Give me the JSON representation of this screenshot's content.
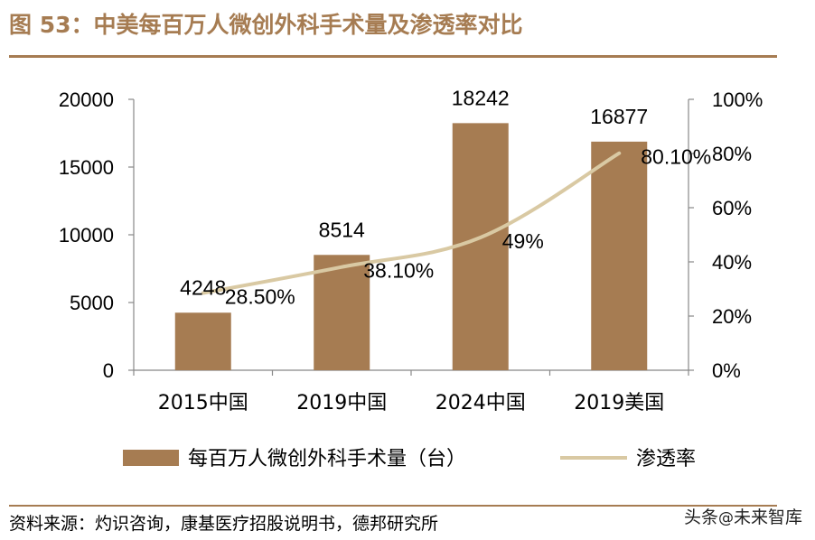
{
  "header": {
    "title": "图 53：中美每百万人微创外科手术量及渗透率对比"
  },
  "footer": {
    "source": "资料来源：灼识咨询，康基医疗招股说明书，德邦研究所"
  },
  "watermark": {
    "prefix": "头条",
    "at": "@",
    "name": "未来智库"
  },
  "colors": {
    "bar": "#a67c52",
    "line": "#d9c9a3",
    "accent": "#a67c52"
  },
  "chart_data": {
    "type": "bar",
    "categories": [
      "2015中国",
      "2019中国",
      "2024中国",
      "2019美国"
    ],
    "series": [
      {
        "name": "每百万人微创外科手术量（台）",
        "type": "bar",
        "axis": "left",
        "values": [
          4248,
          8514,
          18242,
          16877
        ],
        "labels": [
          "4248",
          "8514",
          "18242",
          "16877"
        ]
      },
      {
        "name": "渗透率",
        "type": "line",
        "axis": "right",
        "values": [
          28.5,
          38.1,
          49,
          80.1
        ],
        "labels": [
          "28.50%",
          "38.10%",
          "49%",
          "80.10%"
        ]
      }
    ],
    "y_left": {
      "lim": [
        0,
        20000
      ],
      "ticks": [
        "0",
        "5000",
        "10000",
        "15000",
        "20000"
      ]
    },
    "y_right": {
      "lim": [
        0,
        100
      ],
      "ticks": [
        "0%",
        "20%",
        "40%",
        "60%",
        "80%",
        "100%"
      ]
    },
    "legend_position": "bottom",
    "grid": false
  }
}
